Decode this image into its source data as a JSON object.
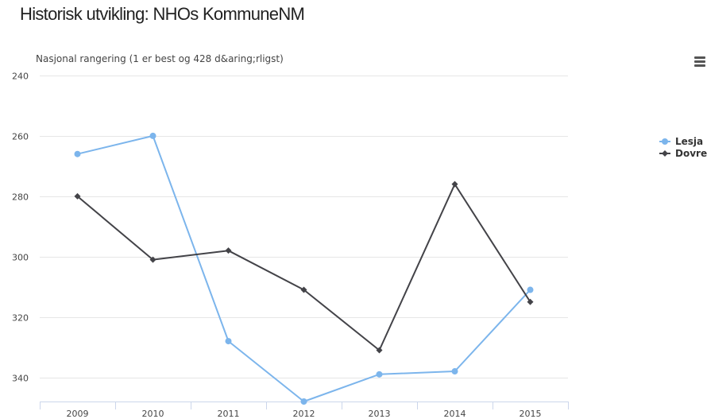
{
  "page": {
    "title": "Historisk utvikling: NHOs KommuneNM"
  },
  "colors": {
    "grid": "#e6e6e6",
    "axis": "#ccd6eb",
    "axis_text": "#444444",
    "menu": "#555555"
  },
  "chart_data": {
    "type": "line",
    "title": "Historisk utvikling: NHOs KommuneNM",
    "ylabel": "Nasjonal rangering (1 er best og 428 d&aring;rligst)",
    "xlabel": "",
    "categories": [
      "2009",
      "2010",
      "2011",
      "2012",
      "2013",
      "2014",
      "2015"
    ],
    "ylim": [
      240,
      348
    ],
    "y_reversed": true,
    "yticks": [
      240,
      260,
      280,
      300,
      320,
      340
    ],
    "grid": true,
    "legend": "right",
    "series": [
      {
        "name": "Lesja",
        "color": "#7cb5ec",
        "marker": "circle",
        "values": [
          266,
          260,
          328,
          348,
          339,
          338,
          311
        ]
      },
      {
        "name": "Dovre",
        "color": "#434348",
        "marker": "diamond",
        "values": [
          280,
          301,
          298,
          311,
          331,
          276,
          315
        ]
      }
    ]
  }
}
